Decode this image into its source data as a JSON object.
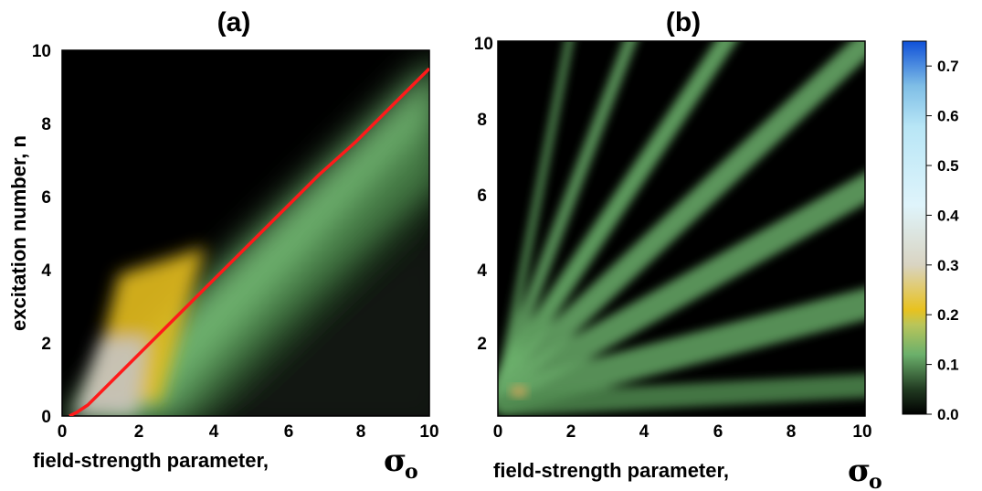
{
  "chart_data": [
    {
      "type": "heatmap",
      "title": "(a)",
      "xlabel": "field-strength parameter,",
      "xlabel_symbol": "σ",
      "xlabel_subscript": "o",
      "ylabel": "excitation number, n",
      "xlim": [
        0,
        10
      ],
      "ylim": [
        0,
        10
      ],
      "x_ticks": [
        "0",
        "2",
        "4",
        "6",
        "8",
        "10"
      ],
      "y_ticks": [
        "0",
        "2",
        "4",
        "6",
        "8",
        "10"
      ],
      "overlay_line": {
        "color": "#ff1a1a",
        "points": [
          [
            0.2,
            0
          ],
          [
            0.4,
            0.1
          ],
          [
            0.7,
            0.3
          ],
          [
            1,
            0.6
          ],
          [
            1.5,
            1.1
          ],
          [
            2,
            1.6
          ],
          [
            3,
            2.6
          ],
          [
            4,
            3.6
          ],
          [
            5,
            4.6
          ],
          [
            6,
            5.6
          ],
          [
            7,
            6.6
          ],
          [
            8,
            7.5
          ],
          [
            9,
            8.5
          ],
          [
            10,
            9.5
          ]
        ]
      }
    },
    {
      "type": "heatmap",
      "title": "(b)",
      "xlabel": "field-strength parameter,",
      "xlabel_symbol": "σ",
      "xlabel_subscript": "o",
      "xlim": [
        0,
        10
      ],
      "ylim": [
        0,
        10
      ],
      "x_ticks": [
        "0",
        "2",
        "4",
        "6",
        "8",
        "10"
      ],
      "y_ticks": [
        "2",
        "4",
        "6",
        "8",
        "10"
      ]
    }
  ],
  "colorbar": {
    "range": [
      0,
      0.75
    ],
    "ticks": [
      0.0,
      0.1,
      0.2,
      0.3,
      0.4,
      0.5,
      0.6,
      0.7
    ],
    "tick_labels": [
      "0.0",
      "0.1",
      "0.2",
      "0.3",
      "0.4",
      "0.5",
      "0.6",
      "0.7"
    ],
    "stops": [
      {
        "v": 0.0,
        "color": "#000000"
      },
      {
        "v": 0.05,
        "color": "#213a21"
      },
      {
        "v": 0.12,
        "color": "#6bb06b"
      },
      {
        "v": 0.18,
        "color": "#b9c55a"
      },
      {
        "v": 0.21,
        "color": "#e8c21f"
      },
      {
        "v": 0.3,
        "color": "#d9d4c2"
      },
      {
        "v": 0.42,
        "color": "#dff4fb"
      },
      {
        "v": 0.58,
        "color": "#b8e6f6"
      },
      {
        "v": 0.66,
        "color": "#7fbee6"
      },
      {
        "v": 0.75,
        "color": "#0f50d8"
      }
    ]
  }
}
